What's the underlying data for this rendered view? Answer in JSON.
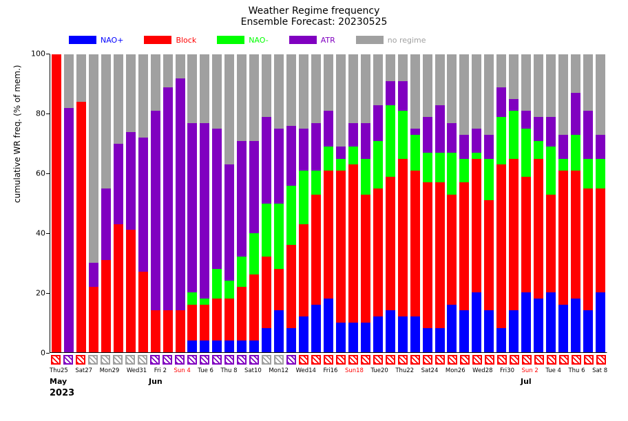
{
  "title": "Weather Regime frequency",
  "subtitle": "Ensemble Forecast: 20230525",
  "ylabel": "cumulative WR freq. (% of mem.)",
  "ylim": [
    0,
    100
  ],
  "ytick_step": 20,
  "colors": {
    "NAO+": "#0000ff",
    "Block": "#ff0000",
    "NAO-": "#00ff00",
    "ATR": "#8000c0",
    "no regime": "#a0a0a0"
  },
  "series_order": [
    "NAO+",
    "Block",
    "NAO-",
    "ATR",
    "no regime"
  ],
  "legend": [
    {
      "label": "NAO+",
      "color_key": "NAO+",
      "text_color": "#0000ff"
    },
    {
      "label": "Block",
      "color_key": "Block",
      "text_color": "#ff0000"
    },
    {
      "label": "NAO-",
      "color_key": "NAO-",
      "text_color": "#00ff00"
    },
    {
      "label": "ATR",
      "color_key": "ATR",
      "text_color": "#8000c0"
    },
    {
      "label": "no regime",
      "color_key": "no regime",
      "text_color": "#a0a0a0"
    }
  ],
  "months": [
    {
      "label": "May",
      "day_index": 0
    },
    {
      "label": "Jun",
      "day_index": 8
    },
    {
      "label": "Jul",
      "day_index": 38
    }
  ],
  "year_label": "2023",
  "days": [
    {
      "label": "Thu25",
      "tick": true,
      "sunday": false,
      "regime": "Block",
      "v": {
        "NAO+": 0,
        "Block": 100,
        "NAO-": 0,
        "ATR": 0,
        "no regime": 0
      }
    },
    {
      "label": "",
      "tick": false,
      "sunday": false,
      "regime": "ATR",
      "v": {
        "NAO+": 0,
        "Block": 0,
        "NAO-": 0,
        "ATR": 82,
        "no regime": 18
      }
    },
    {
      "label": "Sat27",
      "tick": true,
      "sunday": false,
      "regime": "Block",
      "v": {
        "NAO+": 0,
        "Block": 84,
        "NAO-": 0,
        "ATR": 0,
        "no regime": 16
      }
    },
    {
      "label": "",
      "tick": false,
      "sunday": true,
      "regime": "no regime",
      "v": {
        "NAO+": 0,
        "Block": 22,
        "NAO-": 0,
        "ATR": 8,
        "no regime": 70
      }
    },
    {
      "label": "Mon29",
      "tick": true,
      "sunday": false,
      "regime": "no regime",
      "v": {
        "NAO+": 0,
        "Block": 31,
        "NAO-": 0,
        "ATR": 24,
        "no regime": 45
      }
    },
    {
      "label": "",
      "tick": false,
      "sunday": false,
      "regime": "no regime",
      "v": {
        "NAO+": 0,
        "Block": 43,
        "NAO-": 0,
        "ATR": 27,
        "no regime": 30
      }
    },
    {
      "label": "Wed31",
      "tick": true,
      "sunday": false,
      "regime": "no regime",
      "v": {
        "NAO+": 0,
        "Block": 41,
        "NAO-": 0,
        "ATR": 33,
        "no regime": 26
      }
    },
    {
      "label": "",
      "tick": false,
      "sunday": false,
      "regime": "no regime",
      "v": {
        "NAO+": 0,
        "Block": 27,
        "NAO-": 0,
        "ATR": 45,
        "no regime": 28
      }
    },
    {
      "label": "Fri 2",
      "tick": true,
      "sunday": false,
      "regime": "ATR",
      "v": {
        "NAO+": 0,
        "Block": 14,
        "NAO-": 0,
        "ATR": 67,
        "no regime": 19
      }
    },
    {
      "label": "",
      "tick": false,
      "sunday": false,
      "regime": "ATR",
      "v": {
        "NAO+": 0,
        "Block": 14,
        "NAO-": 0,
        "ATR": 75,
        "no regime": 11
      }
    },
    {
      "label": "Sun 4",
      "tick": true,
      "sunday": true,
      "regime": "ATR",
      "v": {
        "NAO+": 0,
        "Block": 14,
        "NAO-": 0,
        "ATR": 78,
        "no regime": 8
      }
    },
    {
      "label": "",
      "tick": false,
      "sunday": false,
      "regime": "ATR",
      "v": {
        "NAO+": 4,
        "Block": 12,
        "NAO-": 4,
        "ATR": 57,
        "no regime": 23
      }
    },
    {
      "label": "Tue 6",
      "tick": true,
      "sunday": false,
      "regime": "ATR",
      "v": {
        "NAO+": 4,
        "Block": 12,
        "NAO-": 2,
        "ATR": 59,
        "no regime": 23
      }
    },
    {
      "label": "",
      "tick": false,
      "sunday": false,
      "regime": "ATR",
      "v": {
        "NAO+": 4,
        "Block": 14,
        "NAO-": 10,
        "ATR": 47,
        "no regime": 25
      }
    },
    {
      "label": "Thu 8",
      "tick": true,
      "sunday": false,
      "regime": "ATR",
      "v": {
        "NAO+": 4,
        "Block": 14,
        "NAO-": 6,
        "ATR": 39,
        "no regime": 37
      }
    },
    {
      "label": "",
      "tick": false,
      "sunday": false,
      "regime": "ATR",
      "v": {
        "NAO+": 4,
        "Block": 18,
        "NAO-": 10,
        "ATR": 39,
        "no regime": 29
      }
    },
    {
      "label": "Sat10",
      "tick": true,
      "sunday": false,
      "regime": "ATR",
      "v": {
        "NAO+": 4,
        "Block": 22,
        "NAO-": 14,
        "ATR": 31,
        "no regime": 29
      }
    },
    {
      "label": "",
      "tick": false,
      "sunday": true,
      "regime": "no regime",
      "v": {
        "NAO+": 8,
        "Block": 24,
        "NAO-": 18,
        "ATR": 29,
        "no regime": 21
      }
    },
    {
      "label": "Mon12",
      "tick": true,
      "sunday": false,
      "regime": "no regime",
      "v": {
        "NAO+": 14,
        "Block": 14,
        "NAO-": 22,
        "ATR": 25,
        "no regime": 25
      }
    },
    {
      "label": "",
      "tick": false,
      "sunday": false,
      "regime": "ATR",
      "v": {
        "NAO+": 8,
        "Block": 28,
        "NAO-": 20,
        "ATR": 20,
        "no regime": 24
      }
    },
    {
      "label": "Wed14",
      "tick": true,
      "sunday": false,
      "regime": "Block",
      "v": {
        "NAO+": 12,
        "Block": 31,
        "NAO-": 18,
        "ATR": 14,
        "no regime": 25
      }
    },
    {
      "label": "",
      "tick": false,
      "sunday": false,
      "regime": "Block",
      "v": {
        "NAO+": 16,
        "Block": 37,
        "NAO-": 8,
        "ATR": 16,
        "no regime": 23
      }
    },
    {
      "label": "Fri16",
      "tick": true,
      "sunday": false,
      "regime": "Block",
      "v": {
        "NAO+": 18,
        "Block": 43,
        "NAO-": 8,
        "ATR": 12,
        "no regime": 19
      }
    },
    {
      "label": "",
      "tick": false,
      "sunday": false,
      "regime": "Block",
      "v": {
        "NAO+": 10,
        "Block": 51,
        "NAO-": 4,
        "ATR": 4,
        "no regime": 31
      }
    },
    {
      "label": "Sun18",
      "tick": true,
      "sunday": true,
      "regime": "Block",
      "v": {
        "NAO+": 10,
        "Block": 53,
        "NAO-": 6,
        "ATR": 8,
        "no regime": 23
      }
    },
    {
      "label": "",
      "tick": false,
      "sunday": false,
      "regime": "Block",
      "v": {
        "NAO+": 10,
        "Block": 43,
        "NAO-": 12,
        "ATR": 12,
        "no regime": 23
      }
    },
    {
      "label": "Tue20",
      "tick": true,
      "sunday": false,
      "regime": "Block",
      "v": {
        "NAO+": 12,
        "Block": 43,
        "NAO-": 16,
        "ATR": 12,
        "no regime": 17
      }
    },
    {
      "label": "",
      "tick": false,
      "sunday": false,
      "regime": "Block",
      "v": {
        "NAO+": 14,
        "Block": 45,
        "NAO-": 24,
        "ATR": 8,
        "no regime": 9
      }
    },
    {
      "label": "Thu22",
      "tick": true,
      "sunday": false,
      "regime": "Block",
      "v": {
        "NAO+": 12,
        "Block": 53,
        "NAO-": 16,
        "ATR": 10,
        "no regime": 9
      }
    },
    {
      "label": "",
      "tick": false,
      "sunday": false,
      "regime": "Block",
      "v": {
        "NAO+": 12,
        "Block": 49,
        "NAO-": 12,
        "ATR": 2,
        "no regime": 25
      }
    },
    {
      "label": "Sat24",
      "tick": true,
      "sunday": false,
      "regime": "Block",
      "v": {
        "NAO+": 8,
        "Block": 49,
        "NAO-": 10,
        "ATR": 12,
        "no regime": 21
      }
    },
    {
      "label": "",
      "tick": false,
      "sunday": true,
      "regime": "Block",
      "v": {
        "NAO+": 8,
        "Block": 49,
        "NAO-": 10,
        "ATR": 16,
        "no regime": 17
      }
    },
    {
      "label": "Mon26",
      "tick": true,
      "sunday": false,
      "regime": "Block",
      "v": {
        "NAO+": 16,
        "Block": 37,
        "NAO-": 14,
        "ATR": 10,
        "no regime": 23
      }
    },
    {
      "label": "",
      "tick": false,
      "sunday": false,
      "regime": "Block",
      "v": {
        "NAO+": 14,
        "Block": 43,
        "NAO-": 8,
        "ATR": 8,
        "no regime": 27
      }
    },
    {
      "label": "Wed28",
      "tick": true,
      "sunday": false,
      "regime": "Block",
      "v": {
        "NAO+": 20,
        "Block": 45,
        "NAO-": 2,
        "ATR": 8,
        "no regime": 25
      }
    },
    {
      "label": "",
      "tick": false,
      "sunday": false,
      "regime": "Block",
      "v": {
        "NAO+": 14,
        "Block": 37,
        "NAO-": 14,
        "ATR": 8,
        "no regime": 27
      }
    },
    {
      "label": "Fri30",
      "tick": true,
      "sunday": false,
      "regime": "Block",
      "v": {
        "NAO+": 8,
        "Block": 55,
        "NAO-": 16,
        "ATR": 10,
        "no regime": 11
      }
    },
    {
      "label": "",
      "tick": false,
      "sunday": false,
      "regime": "Block",
      "v": {
        "NAO+": 14,
        "Block": 51,
        "NAO-": 16,
        "ATR": 4,
        "no regime": 15
      }
    },
    {
      "label": "Sun 2",
      "tick": true,
      "sunday": true,
      "regime": "Block",
      "v": {
        "NAO+": 20,
        "Block": 39,
        "NAO-": 16,
        "ATR": 6,
        "no regime": 19
      }
    },
    {
      "label": "",
      "tick": false,
      "sunday": false,
      "regime": "Block",
      "v": {
        "NAO+": 18,
        "Block": 47,
        "NAO-": 6,
        "ATR": 8,
        "no regime": 21
      }
    },
    {
      "label": "Tue 4",
      "tick": true,
      "sunday": false,
      "regime": "Block",
      "v": {
        "NAO+": 20,
        "Block": 33,
        "NAO-": 16,
        "ATR": 10,
        "no regime": 21
      }
    },
    {
      "label": "",
      "tick": false,
      "sunday": false,
      "regime": "Block",
      "v": {
        "NAO+": 16,
        "Block": 45,
        "NAO-": 4,
        "ATR": 8,
        "no regime": 27
      }
    },
    {
      "label": "Thu 6",
      "tick": true,
      "sunday": false,
      "regime": "Block",
      "v": {
        "NAO+": 18,
        "Block": 43,
        "NAO-": 12,
        "ATR": 14,
        "no regime": 13
      }
    },
    {
      "label": "",
      "tick": false,
      "sunday": false,
      "regime": "Block",
      "v": {
        "NAO+": 14,
        "Block": 41,
        "NAO-": 10,
        "ATR": 16,
        "no regime": 19
      }
    },
    {
      "label": "Sat 8",
      "tick": true,
      "sunday": false,
      "regime": "Block",
      "v": {
        "NAO+": 20,
        "Block": 35,
        "NAO-": 10,
        "ATR": 8,
        "no regime": 27
      }
    }
  ]
}
